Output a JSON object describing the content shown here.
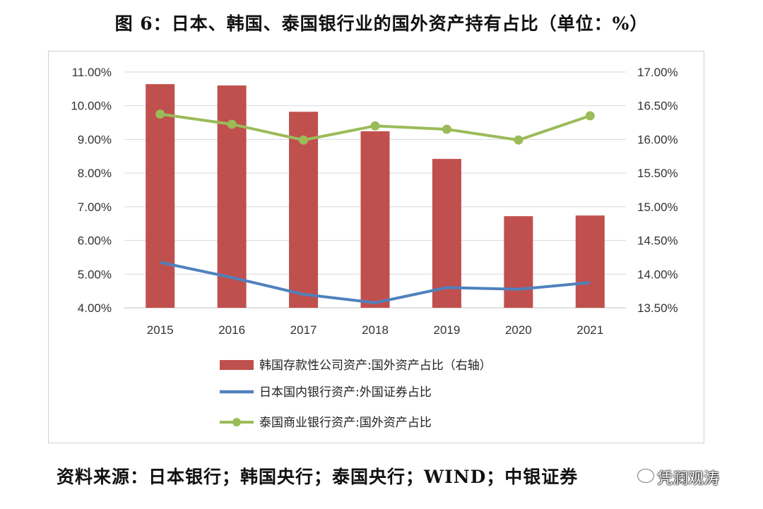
{
  "title": "图 6：日本、韩国、泰国银行业的国外资产持有占比（单位：%）",
  "source": "资料来源：日本银行；韩国央行；泰国央行；WIND；中银证券",
  "watermark": "凭澜观涛",
  "colors": {
    "bar": "#c0504d",
    "japan_line": "#4f81bd",
    "thailand_line": "#9bbb59",
    "grid": "#d9d9d9"
  },
  "chart_data": {
    "type": "bar",
    "categories": [
      "2015",
      "2016",
      "2017",
      "2018",
      "2019",
      "2020",
      "2021"
    ],
    "left_axis": {
      "range": [
        4.0,
        11.0
      ],
      "ticks": [
        4.0,
        5.0,
        6.0,
        7.0,
        8.0,
        9.0,
        10.0,
        11.0
      ],
      "tick_labels": [
        "4.00%",
        "5.00%",
        "6.00%",
        "7.00%",
        "8.00%",
        "9.00%",
        "10.00%",
        "11.00%"
      ]
    },
    "right_axis": {
      "range": [
        13.5,
        17.0
      ],
      "ticks": [
        13.5,
        14.0,
        14.5,
        15.0,
        15.5,
        16.0,
        16.5,
        17.0
      ],
      "tick_labels": [
        "13.50%",
        "14.00%",
        "14.50%",
        "15.00%",
        "15.50%",
        "16.00%",
        "16.50%",
        "17.00%"
      ]
    },
    "grid": true,
    "legend_position": "bottom",
    "series": [
      {
        "name": "韩国存款性公司资产:国外资产占比（右轴）",
        "type": "bar",
        "axis": "right",
        "values": [
          16.82,
          16.8,
          16.41,
          16.12,
          15.71,
          14.86,
          14.87
        ]
      },
      {
        "name": "日本国内银行资产:外国证券占比",
        "type": "line",
        "axis": "left",
        "values": [
          5.35,
          4.9,
          4.4,
          4.15,
          4.6,
          4.55,
          4.75
        ]
      },
      {
        "name": "泰国商业银行资产:国外资产占比",
        "type": "line-marker",
        "axis": "left",
        "values": [
          9.75,
          9.45,
          8.98,
          9.4,
          9.3,
          8.98,
          9.7
        ]
      }
    ]
  }
}
